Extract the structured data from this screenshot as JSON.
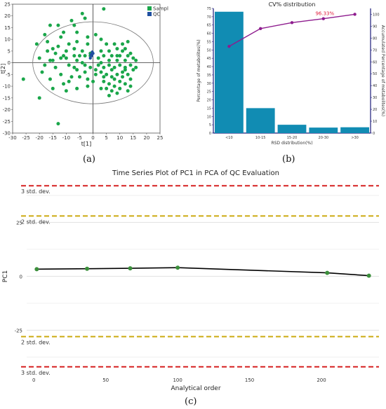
{
  "chart_data": [
    {
      "type": "scatter",
      "panel": "(a)",
      "xlabel": "t[1]",
      "ylabel": "t[2]",
      "xlim": [
        -30,
        25
      ],
      "ylim": [
        -30,
        25
      ],
      "xticks": [
        -30,
        -25,
        -20,
        -15,
        -10,
        -5,
        0,
        5,
        10,
        15,
        20,
        25
      ],
      "yticks": [
        -30,
        -25,
        -20,
        -15,
        -10,
        -5,
        0,
        5,
        10,
        15,
        20,
        25
      ],
      "legend": [
        "Sample",
        "QC"
      ],
      "colors": {
        "Sample": "#1aa64a",
        "QC": "#1f4fa0"
      },
      "ellipse": {
        "center": [
          0,
          0
        ],
        "rx": 22.5,
        "ry": 17.5
      },
      "series": [
        {
          "name": "Sample",
          "points": [
            [
              -4,
              21
            ],
            [
              -3,
              19
            ],
            [
              4,
              23
            ],
            [
              -8,
              18
            ],
            [
              -13,
              16
            ],
            [
              -16,
              16
            ],
            [
              -7,
              16
            ],
            [
              -6,
              13
            ],
            [
              -11,
              13
            ],
            [
              -18,
              12
            ],
            [
              -21,
              8
            ],
            [
              -12,
              11
            ],
            [
              -2,
              11
            ],
            [
              1,
              12
            ],
            [
              -2,
              8
            ],
            [
              -6,
              9
            ],
            [
              -9,
              8
            ],
            [
              -15,
              6
            ],
            [
              -17,
              5
            ],
            [
              -14,
              4
            ],
            [
              -10,
              5
            ],
            [
              -4,
              5
            ],
            [
              -3,
              3
            ],
            [
              -7,
              3
            ],
            [
              -12,
              2
            ],
            [
              -20,
              2
            ],
            [
              -16,
              1
            ],
            [
              -6,
              1
            ],
            [
              -1,
              3
            ],
            [
              3,
              10
            ],
            [
              5,
              8
            ],
            [
              8,
              8
            ],
            [
              9,
              6
            ],
            [
              11,
              5
            ],
            [
              13,
              9
            ],
            [
              7,
              3
            ],
            [
              4,
              3
            ],
            [
              6,
              5
            ],
            [
              10,
              3
            ],
            [
              12,
              6
            ],
            [
              14,
              4
            ],
            [
              -9,
              -1
            ],
            [
              -14,
              -2
            ],
            [
              -19,
              -4
            ],
            [
              -12,
              -5
            ],
            [
              -6,
              -3
            ],
            [
              -3,
              -1
            ],
            [
              -1,
              -2
            ],
            [
              -8,
              -6
            ],
            [
              -16,
              -7
            ],
            [
              -11,
              -9
            ],
            [
              -5,
              -6
            ],
            [
              -2,
              -7
            ],
            [
              -10,
              -12
            ],
            [
              -15,
              -11
            ],
            [
              -26,
              -7
            ],
            [
              -6,
              -11
            ],
            [
              -13,
              -26
            ],
            [
              -20,
              -15
            ],
            [
              2,
              -1
            ],
            [
              4,
              -2
            ],
            [
              6,
              -1
            ],
            [
              8,
              -2
            ],
            [
              10,
              -1
            ],
            [
              12,
              -2
            ],
            [
              14,
              -1
            ],
            [
              16,
              1
            ],
            [
              15,
              -3
            ],
            [
              13,
              -5
            ],
            [
              11,
              -4
            ],
            [
              9,
              -5
            ],
            [
              7,
              -6
            ],
            [
              5,
              -5
            ],
            [
              3,
              -4
            ],
            [
              1,
              -5
            ],
            [
              4,
              -8
            ],
            [
              6,
              -9
            ],
            [
              8,
              -10
            ],
            [
              10,
              -8
            ],
            [
              12,
              -9
            ],
            [
              14,
              -7
            ],
            [
              13,
              -12
            ],
            [
              9,
              -13
            ],
            [
              6,
              -14
            ],
            [
              3,
              -11
            ],
            [
              0,
              -8
            ],
            [
              -2,
              -10
            ],
            [
              -7,
              -2
            ],
            [
              -15,
              1
            ],
            [
              -13,
              7
            ],
            [
              -9,
              -8
            ],
            [
              2,
              2
            ],
            [
              6,
              1
            ],
            [
              9,
              1
            ],
            [
              12,
              1
            ],
            [
              15,
              2
            ],
            [
              3,
              0
            ],
            [
              7,
              -3
            ],
            [
              11,
              -6
            ],
            [
              14,
              -10
            ],
            [
              8,
              -7
            ],
            [
              5,
              -11
            ],
            [
              1,
              -3
            ],
            [
              -4,
              0
            ],
            [
              -10,
              2
            ],
            [
              -18,
              -1
            ],
            [
              -11,
              3
            ],
            [
              -7,
              6
            ],
            [
              -3,
              -4
            ],
            [
              9,
              3
            ],
            [
              11,
              8
            ],
            [
              13,
              3
            ],
            [
              16,
              -2
            ],
            [
              10,
              -11
            ],
            [
              7,
              -12
            ],
            [
              4,
              -6
            ],
            [
              12,
              -3
            ],
            [
              -17,
              9
            ],
            [
              -5,
              3
            ],
            [
              -1,
              4
            ],
            [
              3,
              5
            ]
          ]
        },
        {
          "name": "QC",
          "points": [
            [
              -1,
              2
            ],
            [
              -0.5,
              3
            ],
            [
              0,
              4
            ],
            [
              -0.8,
              3.5
            ],
            [
              -0.3,
              4.6
            ]
          ]
        }
      ]
    },
    {
      "type": "bar",
      "panel": "(b)",
      "title": "CV% distribution",
      "xlabel": "RSD distribution(%)",
      "ylabel": "Percentage of metabolites(%)",
      "y2label": "Accumulated Percentage of metabolites(%)",
      "categories": [
        "<10",
        "10-15",
        "15-20",
        "20-30",
        ">30"
      ],
      "values": [
        73,
        15,
        5,
        3.3,
        3.5
      ],
      "ylim": [
        0,
        75
      ],
      "yticks": [
        0,
        5,
        10,
        15,
        20,
        25,
        30,
        35,
        40,
        45,
        50,
        55,
        60,
        65,
        70,
        75
      ],
      "y2lim": [
        0,
        105
      ],
      "y2ticks": [
        0,
        10,
        20,
        30,
        40,
        50,
        60,
        70,
        80,
        90,
        100
      ],
      "line_series": {
        "name": "",
        "values": [
          73,
          88,
          93,
          96.33,
          100
        ]
      },
      "annotation": "96.33%",
      "colors": {
        "bar": "#118cb3",
        "line": "#8e1c8e",
        "annotation": "#e0203f",
        "axis": "#1c1c7a"
      }
    },
    {
      "type": "line",
      "panel": "(c)",
      "title": "Time Series Plot of PC1 in PCA of QC Evaluation",
      "xlabel": "Analytical order",
      "ylabel": "PC1",
      "xlim": [
        -5,
        240
      ],
      "ylim": [
        -45,
        45
      ],
      "xticks": [
        0,
        50,
        100,
        150,
        200
      ],
      "yticks": [
        -25,
        0,
        25
      ],
      "series": [
        {
          "name": "",
          "x": [
            2,
            37,
            67,
            100,
            204,
            233
          ],
          "y": [
            3.3,
            3.5,
            3.7,
            4.0,
            1.6,
            0.3
          ]
        }
      ],
      "ref_lines": [
        {
          "y": 42,
          "label": "3 std. dev.",
          "color": "#d62020"
        },
        {
          "y": 28,
          "label": "2 std. dev.",
          "color": "#ccaa10"
        },
        {
          "y": -28,
          "label": "2 std. dev.",
          "color": "#ccaa10"
        },
        {
          "y": -42,
          "label": "3 std. dev.",
          "color": "#d62020"
        }
      ],
      "colors": {
        "line": "#000000",
        "point": "#3b8f3b"
      }
    }
  ],
  "panel_labels": [
    "(a)",
    "(b)",
    "(c)"
  ]
}
